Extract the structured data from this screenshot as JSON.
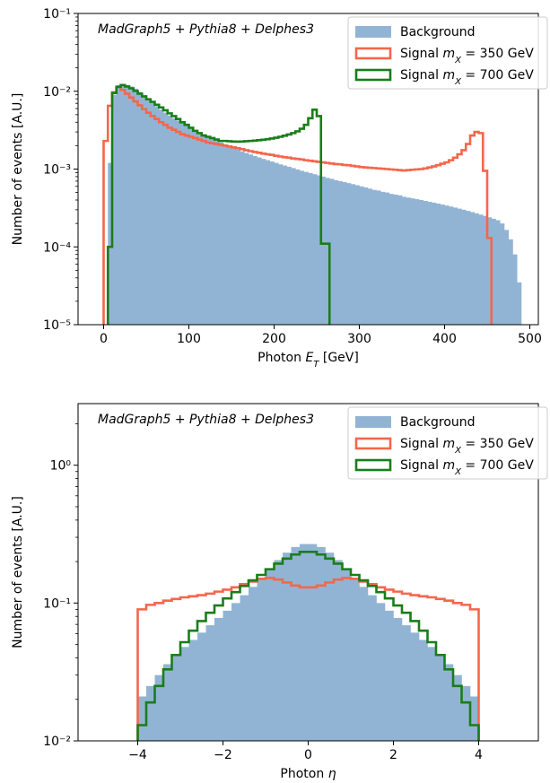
{
  "chart_data": [
    {
      "type": "histogram",
      "annotation": "MadGraph5 + Pythia8 + Delphes3",
      "xlabel": "Photon E_T [GeV]",
      "ylabel": "Number of events [A.U.]",
      "xlim": [
        -30,
        510
      ],
      "ylim": [
        1e-05,
        0.1
      ],
      "yscale": "log",
      "xticks": [
        0,
        100,
        200,
        300,
        400,
        500
      ],
      "yticks": [
        {
          "v": 1e-05,
          "label": "10⁻⁵"
        },
        {
          "v": 0.0001,
          "label": "10⁻⁴"
        },
        {
          "v": 0.001,
          "label": "10⁻³"
        },
        {
          "v": 0.01,
          "label": "10⁻²"
        },
        {
          "v": 0.1,
          "label": "10⁻¹"
        }
      ],
      "legend_position": "top-right",
      "series": [
        {
          "name": "Background",
          "kind": "filled",
          "color": "#92b4d4",
          "edges": [
            5,
            10,
            15,
            20,
            25,
            30,
            35,
            40,
            45,
            50,
            55,
            60,
            65,
            70,
            75,
            80,
            85,
            90,
            95,
            100,
            105,
            110,
            115,
            120,
            125,
            130,
            135,
            140,
            145,
            150,
            155,
            160,
            165,
            170,
            175,
            180,
            185,
            190,
            195,
            200,
            205,
            210,
            215,
            220,
            225,
            230,
            235,
            240,
            245,
            250,
            255,
            260,
            265,
            270,
            275,
            280,
            285,
            290,
            295,
            300,
            305,
            310,
            315,
            320,
            325,
            330,
            335,
            340,
            345,
            350,
            355,
            360,
            365,
            370,
            375,
            380,
            385,
            390,
            395,
            400,
            405,
            410,
            415,
            420,
            425,
            430,
            435,
            440,
            445,
            450,
            455,
            460,
            465,
            470,
            475,
            480,
            485,
            490
          ],
          "values": [
            0.0012,
            0.009,
            0.012,
            0.0125,
            0.012,
            0.0115,
            0.0108,
            0.0098,
            0.0088,
            0.0079,
            0.0071,
            0.0064,
            0.0058,
            0.0053,
            0.0049,
            0.0045,
            0.0042,
            0.0039,
            0.0036,
            0.0034,
            0.0032,
            0.003,
            0.0028,
            0.00265,
            0.0025,
            0.00235,
            0.0022,
            0.00208,
            0.00197,
            0.00187,
            0.00178,
            0.00169,
            0.00161,
            0.00154,
            0.00147,
            0.00141,
            0.00135,
            0.0013,
            0.00125,
            0.0012,
            0.00115,
            0.00111,
            0.00107,
            0.00103,
            0.00099,
            0.00095,
            0.00092,
            0.00089,
            0.00086,
            0.00083,
            0.0008,
            0.00077,
            0.00075,
            0.00072,
            0.0007,
            0.00068,
            0.00066,
            0.00064,
            0.00062,
            0.0006,
            0.00058,
            0.00056,
            0.00054,
            0.00053,
            0.00051,
            0.0005,
            0.00048,
            0.00047,
            0.00046,
            0.00044,
            0.00043,
            0.00042,
            0.00041,
            0.0004,
            0.00039,
            0.00038,
            0.00037,
            0.00036,
            0.00035,
            0.00034,
            0.00033,
            0.00032,
            0.00031,
            0.0003,
            0.00029,
            0.00028,
            0.00027,
            0.00026,
            0.00025,
            0.00024,
            0.00023,
            0.00022,
            0.0002,
            0.000165,
            0.000125,
            8e-05,
            3.5e-05
          ]
        },
        {
          "name": "Signal m_X = 350 GeV",
          "kind": "step",
          "color": "#f4674b",
          "edges": [
            0,
            5,
            10,
            15,
            20,
            25,
            30,
            35,
            40,
            45,
            50,
            55,
            60,
            65,
            70,
            75,
            80,
            85,
            90,
            95,
            100,
            105,
            110,
            115,
            120,
            125,
            130,
            135,
            140,
            145,
            150,
            155,
            160,
            165,
            170,
            175,
            180,
            185,
            190,
            195,
            200,
            205,
            210,
            215,
            220,
            225,
            230,
            235,
            240,
            245,
            250,
            255,
            260,
            265,
            270,
            275,
            280,
            285,
            290,
            295,
            300,
            305,
            310,
            315,
            320,
            325,
            330,
            335,
            340,
            345,
            350,
            355,
            360,
            365,
            370,
            375,
            380,
            385,
            390,
            395,
            400,
            405,
            410,
            415,
            420,
            425,
            430,
            435,
            440,
            445,
            450,
            455
          ],
          "values": [
            0.0023,
            0.0065,
            0.0097,
            0.0114,
            0.0104,
            0.0093,
            0.0083,
            0.0074,
            0.0066,
            0.0059,
            0.0053,
            0.0048,
            0.0044,
            0.004,
            0.0037,
            0.0034,
            0.0032,
            0.003,
            0.0028,
            0.0027,
            0.0026,
            0.0025,
            0.0024,
            0.0023,
            0.0022,
            0.00215,
            0.0021,
            0.00205,
            0.002,
            0.00195,
            0.0019,
            0.00185,
            0.0018,
            0.00175,
            0.0017,
            0.00166,
            0.00162,
            0.00158,
            0.00155,
            0.00152,
            0.00148,
            0.00145,
            0.00142,
            0.0014,
            0.00137,
            0.00135,
            0.00133,
            0.0013,
            0.00128,
            0.00126,
            0.00124,
            0.00122,
            0.0012,
            0.00118,
            0.00116,
            0.00115,
            0.00113,
            0.00112,
            0.0011,
            0.00108,
            0.00106,
            0.00105,
            0.00104,
            0.00103,
            0.00102,
            0.00101,
            0.001,
            0.00099,
            0.00098,
            0.00097,
            0.00096,
            0.00097,
            0.00098,
            0.00099,
            0.001,
            0.00102,
            0.00105,
            0.00108,
            0.00112,
            0.00117,
            0.00122,
            0.0013,
            0.0014,
            0.00155,
            0.00175,
            0.0021,
            0.0027,
            0.003,
            0.0029,
            0.00095,
            0.00013
          ]
        },
        {
          "name": "Signal m_X = 700 GeV",
          "kind": "step",
          "color": "#1a7d1a",
          "edges": [
            5,
            10,
            15,
            20,
            25,
            30,
            35,
            40,
            45,
            50,
            55,
            60,
            65,
            70,
            75,
            80,
            85,
            90,
            95,
            100,
            105,
            110,
            115,
            120,
            125,
            130,
            135,
            140,
            145,
            150,
            155,
            160,
            165,
            170,
            175,
            180,
            185,
            190,
            195,
            200,
            205,
            210,
            215,
            220,
            225,
            230,
            235,
            240,
            245,
            250,
            255,
            260,
            265
          ],
          "values": [
            0.0001,
            0.0095,
            0.0114,
            0.012,
            0.0115,
            0.0109,
            0.0101,
            0.0093,
            0.0086,
            0.0079,
            0.0073,
            0.0067,
            0.0062,
            0.0057,
            0.0052,
            0.0048,
            0.0044,
            0.004,
            0.0037,
            0.0034,
            0.0031,
            0.0029,
            0.0027,
            0.0026,
            0.0025,
            0.0024,
            0.0023,
            0.0023,
            0.00228,
            0.00226,
            0.00225,
            0.00226,
            0.00228,
            0.0023,
            0.00232,
            0.00235,
            0.00238,
            0.00242,
            0.00247,
            0.00253,
            0.0026,
            0.00268,
            0.00278,
            0.0029,
            0.00305,
            0.0033,
            0.0037,
            0.0045,
            0.0058,
            0.0048,
            0.00011,
            0.00011
          ]
        }
      ]
    },
    {
      "type": "histogram",
      "annotation": "MadGraph5 + Pythia8 + Delphes3",
      "xlabel": "Photon η",
      "ylabel": "Number of events [A.U.]",
      "xlim": [
        -5.4,
        5.4
      ],
      "ylim": [
        0.01,
        2.8
      ],
      "yscale": "log",
      "xticks": [
        -4,
        -2,
        0,
        2,
        4
      ],
      "yticks": [
        {
          "v": 0.01,
          "label": "10⁻²"
        },
        {
          "v": 0.1,
          "label": "10⁻¹"
        },
        {
          "v": 1,
          "label": "10⁰"
        }
      ],
      "legend_position": "top-right",
      "series": [
        {
          "name": "Background",
          "kind": "filled",
          "color": "#92b4d4",
          "edges": [
            -4,
            -3.8,
            -3.6,
            -3.4,
            -3.2,
            -3,
            -2.8,
            -2.6,
            -2.4,
            -2.2,
            -2,
            -1.8,
            -1.6,
            -1.4,
            -1.2,
            -1,
            -0.8,
            -0.6,
            -0.4,
            -0.2,
            0,
            0.2,
            0.4,
            0.6,
            0.8,
            1,
            1.2,
            1.4,
            1.6,
            1.8,
            2,
            2.2,
            2.4,
            2.6,
            2.8,
            3,
            3.2,
            3.4,
            3.6,
            3.8,
            4
          ],
          "values": [
            0.021,
            0.025,
            0.03,
            0.036,
            0.042,
            0.048,
            0.054,
            0.061,
            0.069,
            0.078,
            0.088,
            0.1,
            0.114,
            0.131,
            0.152,
            0.176,
            0.205,
            0.232,
            0.255,
            0.268,
            0.268,
            0.255,
            0.232,
            0.205,
            0.176,
            0.152,
            0.131,
            0.114,
            0.1,
            0.088,
            0.078,
            0.069,
            0.061,
            0.054,
            0.048,
            0.042,
            0.036,
            0.03,
            0.025,
            0.021
          ]
        },
        {
          "name": "Signal m_X = 350 GeV",
          "kind": "step",
          "color": "#f4674b",
          "edges": [
            -4,
            -3.8,
            -3.6,
            -3.4,
            -3.2,
            -3,
            -2.8,
            -2.6,
            -2.4,
            -2.2,
            -2,
            -1.8,
            -1.6,
            -1.4,
            -1.2,
            -1,
            -0.8,
            -0.6,
            -0.4,
            -0.2,
            0,
            0.2,
            0.4,
            0.6,
            0.8,
            1,
            1.2,
            1.4,
            1.6,
            1.8,
            2,
            2.2,
            2.4,
            2.6,
            2.8,
            3,
            3.2,
            3.4,
            3.6,
            3.8,
            4
          ],
          "values": [
            0.09,
            0.097,
            0.1,
            0.104,
            0.107,
            0.11,
            0.112,
            0.114,
            0.117,
            0.121,
            0.125,
            0.13,
            0.137,
            0.143,
            0.15,
            0.152,
            0.148,
            0.141,
            0.134,
            0.13,
            0.13,
            0.134,
            0.141,
            0.148,
            0.152,
            0.15,
            0.143,
            0.137,
            0.13,
            0.125,
            0.121,
            0.117,
            0.114,
            0.112,
            0.11,
            0.107,
            0.104,
            0.1,
            0.097,
            0.09
          ]
        },
        {
          "name": "Signal m_X = 700 GeV",
          "kind": "step",
          "color": "#1a7d1a",
          "edges": [
            -4,
            -3.8,
            -3.6,
            -3.4,
            -3.2,
            -3,
            -2.8,
            -2.6,
            -2.4,
            -2.2,
            -2,
            -1.8,
            -1.6,
            -1.4,
            -1.2,
            -1,
            -0.8,
            -0.6,
            -0.4,
            -0.2,
            0,
            0.2,
            0.4,
            0.6,
            0.8,
            1,
            1.2,
            1.4,
            1.6,
            1.8,
            2,
            2.2,
            2.4,
            2.6,
            2.8,
            3,
            3.2,
            3.4,
            3.6,
            3.8,
            4
          ],
          "values": [
            0.013,
            0.019,
            0.025,
            0.033,
            0.042,
            0.052,
            0.063,
            0.074,
            0.085,
            0.096,
            0.108,
            0.12,
            0.133,
            0.146,
            0.16,
            0.176,
            0.193,
            0.21,
            0.225,
            0.235,
            0.235,
            0.225,
            0.21,
            0.193,
            0.176,
            0.16,
            0.146,
            0.133,
            0.12,
            0.108,
            0.096,
            0.085,
            0.074,
            0.063,
            0.052,
            0.042,
            0.033,
            0.025,
            0.019,
            0.013
          ]
        }
      ]
    }
  ]
}
